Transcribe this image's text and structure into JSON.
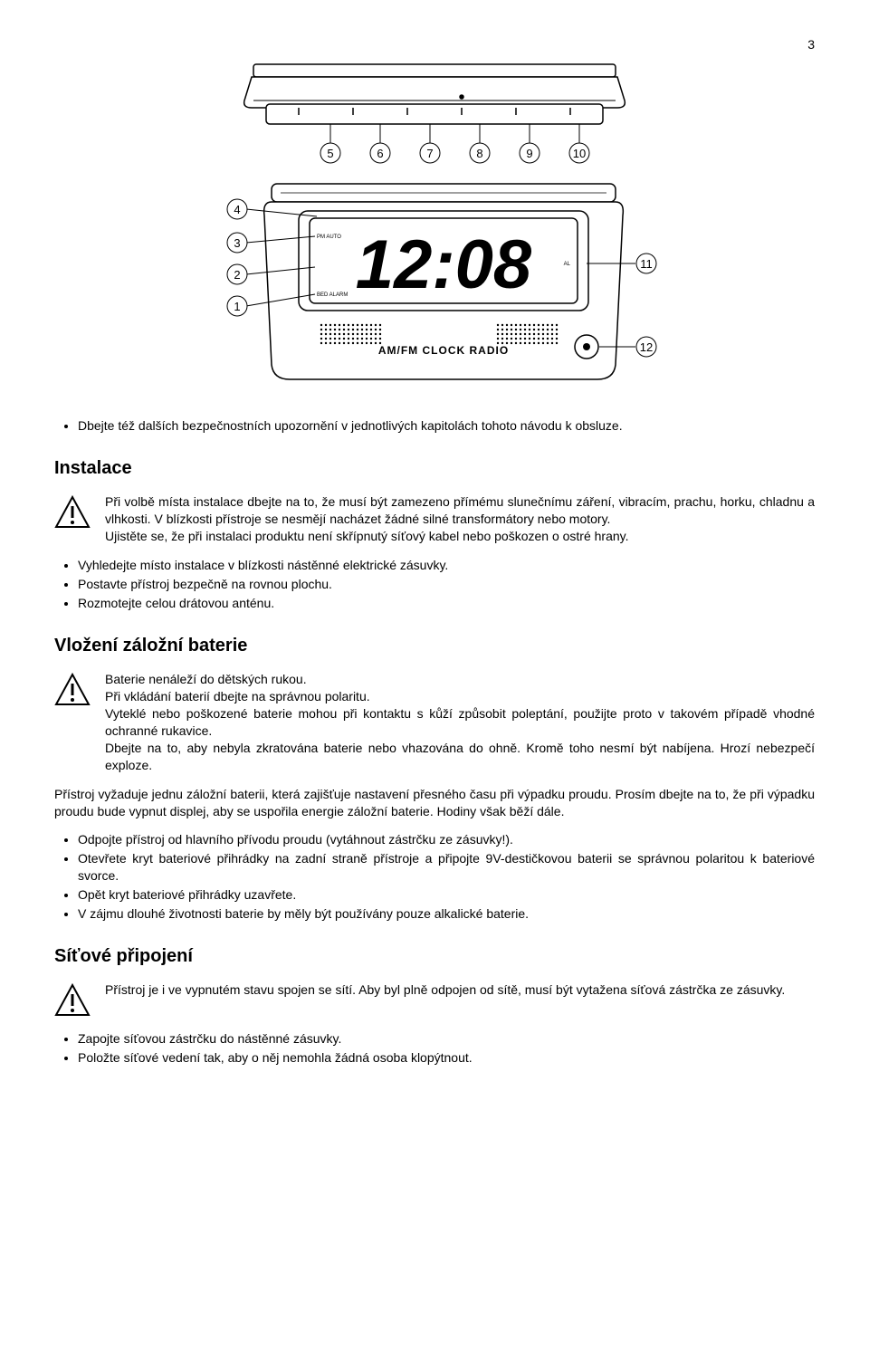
{
  "page_number": "3",
  "first_bullet": "Dbejte též dalších bezpečnostních upozornění v jednotlivých kapitolách tohoto návodu k obsluze.",
  "install": {
    "heading": "Instalace",
    "warn1": "Při volbě místa instalace dbejte na to, že musí být zamezeno přímému slunečnímu záření, vibracím, prachu, horku, chladnu a vlhkosti. V blízkosti přístroje se nesmějí nacházet žádné silné transformátory nebo motory.",
    "warn2": "Ujistěte se, že při instalaci produktu není skřípnutý síťový kabel nebo poškozen o ostré hrany.",
    "bullets": [
      "Vyhledejte místo instalace v blízkosti nástěnné elektrické zásuvky.",
      "Postavte přístroj bezpečně na rovnou plochu.",
      "Rozmotejte celou drátovou anténu."
    ]
  },
  "battery": {
    "heading": "Vložení záložní baterie",
    "warn_lines": [
      "Baterie nenáleží do dětských rukou.",
      "Při vkládání baterií dbejte na správnou polaritu.",
      "Vyteklé nebo poškozené baterie mohou při kontaktu s kůží způsobit poleptání, použijte proto v takovém případě vhodné ochranné rukavice.",
      "Dbejte na to, aby nebyla zkratována baterie nebo vhazována do ohně. Kromě toho nesmí být nabíjena. Hrozí nebezpečí exploze."
    ],
    "para": "Přístroj vyžaduje jednu záložní baterii, která zajišťuje nastavení přesného času při výpadku proudu. Prosím dbejte na to, že při výpadku proudu bude vypnut displej, aby se uspořila energie záložní baterie. Hodiny však běží dále.",
    "bullets": [
      "Odpojte přístroj od        hlavního přívodu proudu (vytáhnout zástrčku ze zásuvky!).",
      "Otevřete kryt bateriové přihrádky na zadní straně přístroje a připojte 9V-destičkovou baterii se správnou polaritou k bateriové svorce.",
      "Opět kryt bateriové přihrádky uzavřete.",
      "V zájmu dlouhé životnosti baterie by měly být používány pouze alkalické baterie."
    ]
  },
  "power": {
    "heading": "Síťové připojení",
    "warn": "Přístroj je i ve vypnutém stavu spojen se sítí. Aby byl plně odpojen od sítě, musí být vytažena síťová zástrčka ze zásuvky.",
    "bullets": [
      "Zapojte síťovou zástrčku do nástěnné zásuvky.",
      "Položte síťové vedení tak, aby o něj nemohla žádná osoba klopýtnout."
    ]
  },
  "diagram": {
    "display_time": "12:08",
    "brand_text": "AM/FM  CLOCK RADIO",
    "callouts_top": [
      "5",
      "6",
      "7",
      "8",
      "9",
      "10"
    ],
    "callouts_left": [
      "4",
      "3",
      "2",
      "1"
    ],
    "callouts_right": [
      "11",
      "12"
    ],
    "colors": {
      "stroke": "#000000",
      "fill": "#ffffff",
      "shade": "#d9d9d9"
    }
  }
}
